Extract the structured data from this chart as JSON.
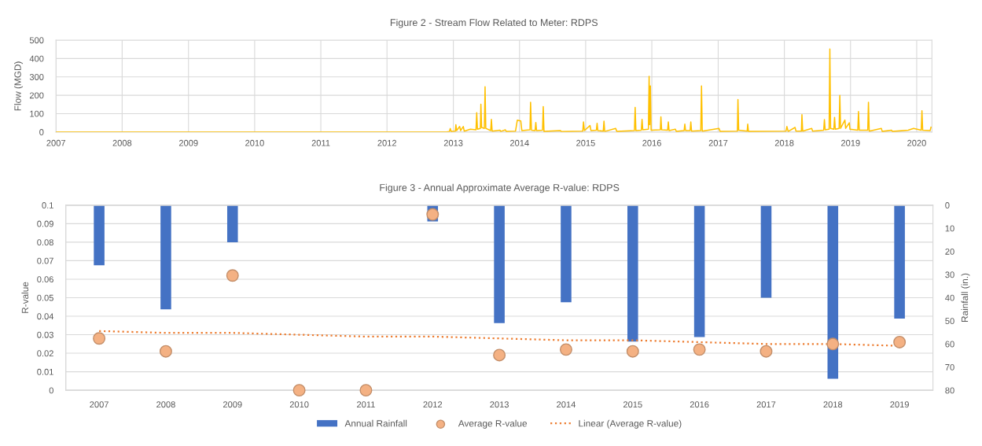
{
  "chart_data": [
    {
      "type": "line",
      "title": "Figure 2 - Stream Flow Related to Meter: RDPS",
      "ylabel": "Flow (MGD)",
      "x": [
        "2007-01-01",
        "2012-11-25",
        "2012-12-10",
        "2012-12-15",
        "2012-12-20",
        "2013-01-12",
        "2013-01-15",
        "2013-01-19",
        "2013-02-05",
        "2013-02-10",
        "2013-02-25",
        "2013-03-02",
        "2013-04-05",
        "2013-05-06",
        "2013-05-10",
        "2013-05-14",
        "2013-05-30",
        "2013-06-02",
        "2013-06-06",
        "2013-06-21",
        "2013-06-25",
        "2013-06-29",
        "2013-07-26",
        "2013-07-30",
        "2013-08-03",
        "2013-09-15",
        "2013-09-20",
        "2013-10-15",
        "2013-10-20",
        "2013-12-10",
        "2013-12-20",
        "2014-01-08",
        "2014-01-14",
        "2014-02-28",
        "2014-03-03",
        "2014-03-08",
        "2014-03-28",
        "2014-04-01",
        "2014-04-05",
        "2014-05-08",
        "2014-05-12",
        "2014-05-16",
        "2014-08-15",
        "2014-08-20",
        "2014-12-16",
        "2014-12-20",
        "2014-12-25",
        "2015-01-25",
        "2015-01-30",
        "2015-03-01",
        "2015-03-05",
        "2015-03-09",
        "2015-04-08",
        "2015-04-12",
        "2015-04-16",
        "2015-06-15",
        "2015-06-22",
        "2015-09-27",
        "2015-10-01",
        "2015-10-05",
        "2015-11-04",
        "2015-11-08",
        "2015-11-12",
        "2015-12-13",
        "2015-12-17",
        "2015-12-20",
        "2015-12-24",
        "2015-12-28",
        "2016-02-17",
        "2016-02-20",
        "2016-02-24",
        "2016-03-28",
        "2016-04-01",
        "2016-04-05",
        "2016-05-10",
        "2016-05-15",
        "2016-06-27",
        "2016-07-01",
        "2016-07-05",
        "2016-07-30",
        "2016-08-03",
        "2016-08-07",
        "2016-09-27",
        "2016-10-01",
        "2016-10-05",
        "2017-01-05",
        "2017-01-12",
        "2017-04-17",
        "2017-04-20",
        "2017-04-24",
        "2017-06-10",
        "2017-06-13",
        "2017-06-17",
        "2018-01-10",
        "2018-01-15",
        "2018-01-22",
        "2018-03-01",
        "2018-03-06",
        "2018-04-05",
        "2018-04-08",
        "2018-04-12",
        "2018-06-01",
        "2018-06-06",
        "2018-08-06",
        "2018-08-10",
        "2018-08-14",
        "2018-09-05",
        "2018-09-09",
        "2018-09-13",
        "2018-10-01",
        "2018-10-05",
        "2018-10-09",
        "2018-10-30",
        "2018-11-03",
        "2018-11-07",
        "2018-12-01",
        "2018-12-05",
        "2018-12-25",
        "2018-12-29",
        "2019-02-10",
        "2019-02-14",
        "2019-02-18",
        "2019-04-06",
        "2019-04-10",
        "2019-04-14",
        "2019-06-20",
        "2019-06-25",
        "2019-08-15",
        "2019-08-20",
        "2019-11-15",
        "2019-12-15",
        "2020-01-26",
        "2020-01-30",
        "2020-02-03",
        "2020-03-15",
        "2020-03-20"
      ],
      "series": [
        {
          "color": "#ffc000",
          "values": [
            0,
            0,
            3,
            19,
            3,
            5,
            40,
            8,
            30,
            8,
            30,
            5,
            15,
            12,
            105,
            15,
            20,
            151,
            25,
            20,
            246,
            20,
            8,
            69,
            5,
            10,
            3,
            12,
            3,
            5,
            65,
            60,
            8,
            12,
            162,
            10,
            8,
            52,
            8,
            10,
            138,
            3,
            8,
            2,
            5,
            55,
            8,
            35,
            8,
            10,
            47,
            8,
            5,
            59,
            3,
            20,
            3,
            8,
            134,
            8,
            10,
            69,
            12,
            15,
            303,
            40,
            251,
            10,
            12,
            83,
            12,
            10,
            55,
            8,
            15,
            3,
            8,
            43,
            8,
            8,
            55,
            5,
            8,
            251,
            5,
            20,
            3,
            5,
            177,
            10,
            5,
            43,
            3,
            5,
            30,
            3,
            25,
            5,
            5,
            94,
            5,
            20,
            5,
            10,
            68,
            12,
            15,
            452,
            20,
            15,
            80,
            15,
            20,
            199,
            20,
            65,
            20,
            50,
            15,
            10,
            112,
            10,
            10,
            162,
            5,
            20,
            3,
            10,
            3,
            10,
            20,
            10,
            116,
            10,
            8,
            26
          ]
        }
      ],
      "xlim": [
        "2007-01-01",
        "2020-03-25"
      ],
      "xticks": [
        "2007",
        "2008",
        "2009",
        "2010",
        "2011",
        "2012",
        "2013",
        "2014",
        "2015",
        "2016",
        "2017",
        "2018",
        "2019",
        "2020"
      ],
      "ylim": [
        0,
        500
      ],
      "yticks": [
        0,
        100,
        200,
        300,
        400,
        500
      ],
      "grid": true
    },
    {
      "type": "bar",
      "title": "Figure 3 - Annual Approximate Average R-value: RDPS",
      "ylabel": "R-value",
      "y2label": "Rainfall (in.)",
      "categories": [
        "2007",
        "2008",
        "2009",
        "2010",
        "2011",
        "2012",
        "2013",
        "2014",
        "2015",
        "2016",
        "2017",
        "2018",
        "2019"
      ],
      "series": [
        {
          "name": "Annual Rainfall",
          "type": "bar",
          "axis": "y2",
          "color": "#4472c4",
          "values": [
            26,
            45,
            16,
            null,
            null,
            7,
            51,
            42,
            59,
            57,
            40,
            75,
            49
          ]
        },
        {
          "name": "Average R-value",
          "type": "scatter",
          "marker": "circle",
          "color": "#f4b183",
          "values": [
            0.028,
            0.021,
            0.062,
            0,
            0,
            0.095,
            0.019,
            0.022,
            0.021,
            0.022,
            0.021,
            0.025,
            0.026
          ]
        },
        {
          "name": "Linear (Average R-value)",
          "type": "line",
          "line_style": "dotted",
          "color": "#ed7d31",
          "values": [
            0.032,
            0.031,
            0.031,
            0.03,
            0.029,
            0.029,
            0.028,
            0.027,
            0.027,
            0.026,
            0.025,
            0.025,
            0.024
          ]
        }
      ],
      "ylim": [
        0,
        0.1
      ],
      "yticks": [
        0,
        0.01,
        0.02,
        0.03,
        0.04,
        0.05,
        0.06,
        0.07,
        0.08,
        0.09,
        0.1
      ],
      "y2lim": [
        80,
        0
      ],
      "y2ticks": [
        0,
        10,
        20,
        30,
        40,
        50,
        60,
        70,
        80
      ],
      "grid": "y",
      "legend": "bottom"
    }
  ]
}
